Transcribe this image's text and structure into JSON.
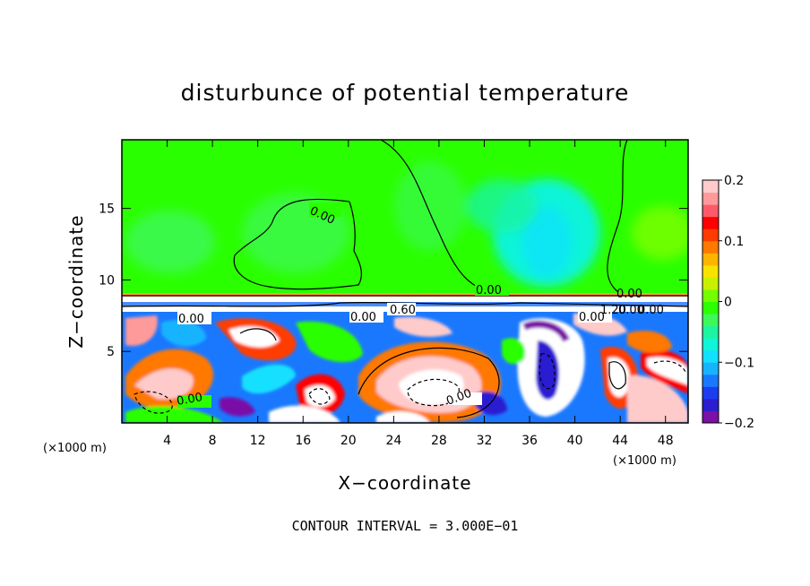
{
  "chart_data": {
    "type": "heatmap",
    "title": "disturbunce of potential temperature",
    "xlabel": "X−coordinate",
    "ylabel": "Z−coordinate",
    "x_unit": "(×1000 m)",
    "x_unit_repeat": "(×1000 m)",
    "x_ticks": [
      4,
      8,
      12,
      16,
      20,
      24,
      28,
      32,
      36,
      40,
      44,
      48
    ],
    "y_ticks": [
      5,
      10,
      15
    ],
    "xlim": [
      0,
      50
    ],
    "ylim": [
      0,
      19.8
    ],
    "colorbar": {
      "range": [
        -0.2,
        0.2
      ],
      "tick_values": [
        0.2,
        0.1,
        0,
        -0.1,
        -0.2
      ],
      "tick_labels": [
        "0.2",
        "0.1",
        "0",
        "−0.1",
        "−0.2"
      ],
      "colors": [
        "#7a10a8",
        "#2a1ed0",
        "#1c3cf0",
        "#1a78ff",
        "#16b4ff",
        "#12e0ff",
        "#10f4d8",
        "#1cf4a0",
        "#3ef85a",
        "#2aff00",
        "#74ff00",
        "#c8f000",
        "#f8e200",
        "#ffb400",
        "#ff7800",
        "#ff3c00",
        "#ff0000",
        "#ff5a6a",
        "#ff9a9a",
        "#ffcaca"
      ]
    },
    "contour_interval_text": "CONTOUR INTERVAL = 3.000E−01",
    "contour_labels": [
      "0.00",
      "0.00",
      "0.00",
      "0.00",
      "0.00",
      "0.60",
      "0.00",
      "0.00",
      "1.20",
      "0.00",
      "0.00",
      "0.00"
    ],
    "background_color": "#2aff00",
    "inversion_layer_z": 9
  }
}
